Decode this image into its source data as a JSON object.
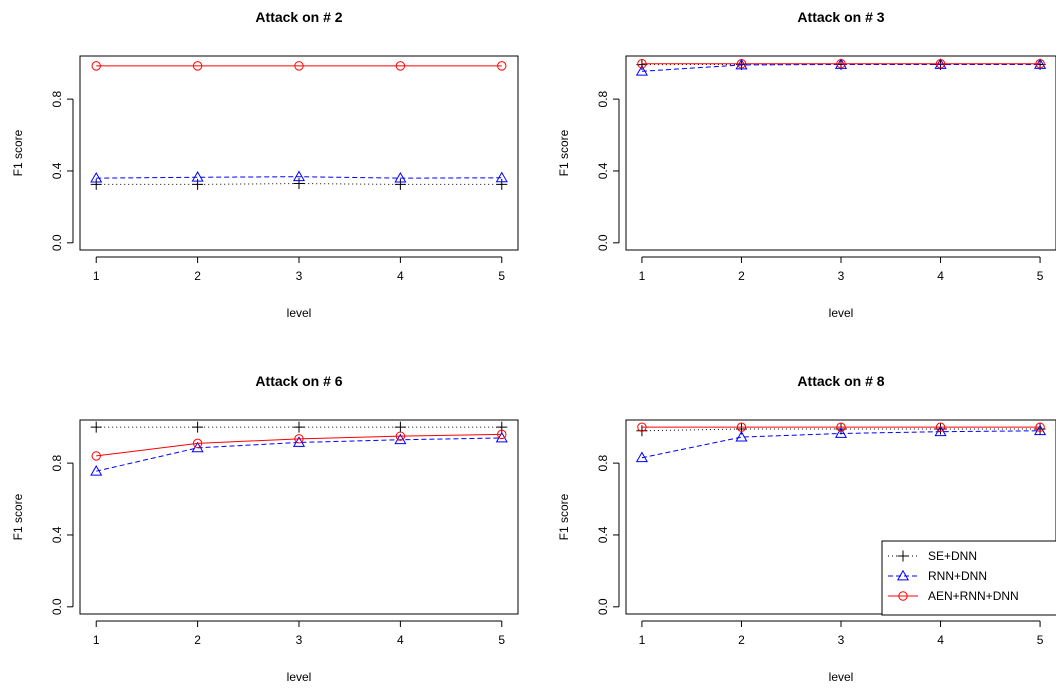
{
  "figure": {
    "legend": {
      "placement": "bottom-right of panel 4",
      "entries": [
        "SE+DNN",
        "RNN+DNN",
        "AEN+RNN+DNN"
      ]
    }
  },
  "chart_data": [
    {
      "type": "line",
      "title": "Attack on # 2",
      "xlabel": "level",
      "ylabel": "F1 score",
      "x": [
        1,
        2,
        3,
        4,
        5
      ],
      "xticks": [
        "1",
        "2",
        "3",
        "4",
        "5"
      ],
      "yticks": [
        "0.0",
        "0.4",
        "0.8"
      ],
      "ylim": [
        0,
        1.0
      ],
      "grid": false,
      "series": [
        {
          "name": "SE+DNN",
          "values": [
            0.325,
            0.325,
            0.33,
            0.325,
            0.325
          ],
          "color": "#000000",
          "dash": "dotted",
          "marker": "plus"
        },
        {
          "name": "RNN+DNN",
          "values": [
            0.36,
            0.365,
            0.368,
            0.36,
            0.362
          ],
          "color": "#0000ff",
          "dash": "dashed",
          "marker": "triangle"
        },
        {
          "name": "AEN+RNN+DNN",
          "values": [
            0.985,
            0.985,
            0.985,
            0.985,
            0.985
          ],
          "color": "#ff0000",
          "dash": "solid",
          "marker": "circle"
        }
      ]
    },
    {
      "type": "line",
      "title": "Attack on # 3",
      "xlabel": "level",
      "ylabel": "F1 score",
      "x": [
        1,
        2,
        3,
        4,
        5
      ],
      "xticks": [
        "1",
        "2",
        "3",
        "4",
        "5"
      ],
      "yticks": [
        "0.0",
        "0.4",
        "0.8"
      ],
      "ylim": [
        0,
        1.0
      ],
      "grid": false,
      "series": [
        {
          "name": "SE+DNN",
          "values": [
            0.992,
            0.993,
            0.993,
            0.993,
            0.993
          ],
          "color": "#000000",
          "dash": "dotted",
          "marker": "plus"
        },
        {
          "name": "RNN+DNN",
          "values": [
            0.955,
            0.99,
            0.993,
            0.993,
            0.993
          ],
          "color": "#0000ff",
          "dash": "dashed",
          "marker": "triangle"
        },
        {
          "name": "AEN+RNN+DNN",
          "values": [
            0.997,
            0.997,
            0.997,
            0.997,
            0.997
          ],
          "color": "#ff0000",
          "dash": "solid",
          "marker": "circle"
        }
      ]
    },
    {
      "type": "line",
      "title": "Attack on # 6",
      "xlabel": "level",
      "ylabel": "F1 score",
      "x": [
        1,
        2,
        3,
        4,
        5
      ],
      "xticks": [
        "1",
        "2",
        "3",
        "4",
        "5"
      ],
      "yticks": [
        "0.0",
        "0.4",
        "0.8"
      ],
      "ylim": [
        0,
        1.0
      ],
      "grid": false,
      "series": [
        {
          "name": "SE+DNN",
          "values": [
            1.0,
            1.0,
            1.0,
            1.0,
            1.0
          ],
          "color": "#000000",
          "dash": "dotted",
          "marker": "plus"
        },
        {
          "name": "RNN+DNN",
          "values": [
            0.755,
            0.885,
            0.915,
            0.93,
            0.94
          ],
          "color": "#0000ff",
          "dash": "dashed",
          "marker": "triangle"
        },
        {
          "name": "AEN+RNN+DNN",
          "values": [
            0.84,
            0.91,
            0.935,
            0.95,
            0.96
          ],
          "color": "#ff0000",
          "dash": "solid",
          "marker": "circle"
        }
      ]
    },
    {
      "type": "line",
      "title": "Attack on # 8",
      "xlabel": "level",
      "ylabel": "F1 score",
      "x": [
        1,
        2,
        3,
        4,
        5
      ],
      "xticks": [
        "1",
        "2",
        "3",
        "4",
        "5"
      ],
      "yticks": [
        "0.0",
        "0.4",
        "0.8"
      ],
      "ylim": [
        0,
        1.0
      ],
      "grid": false,
      "legend": true,
      "series": [
        {
          "name": "SE+DNN",
          "values": [
            0.98,
            0.99,
            0.99,
            0.99,
            0.99
          ],
          "color": "#000000",
          "dash": "dotted",
          "marker": "plus"
        },
        {
          "name": "RNN+DNN",
          "values": [
            0.83,
            0.945,
            0.965,
            0.975,
            0.98
          ],
          "color": "#0000ff",
          "dash": "dashed",
          "marker": "triangle"
        },
        {
          "name": "AEN+RNN+DNN",
          "values": [
            1.0,
            1.0,
            1.0,
            1.0,
            1.0
          ],
          "color": "#ff0000",
          "dash": "solid",
          "marker": "circle"
        }
      ]
    }
  ]
}
